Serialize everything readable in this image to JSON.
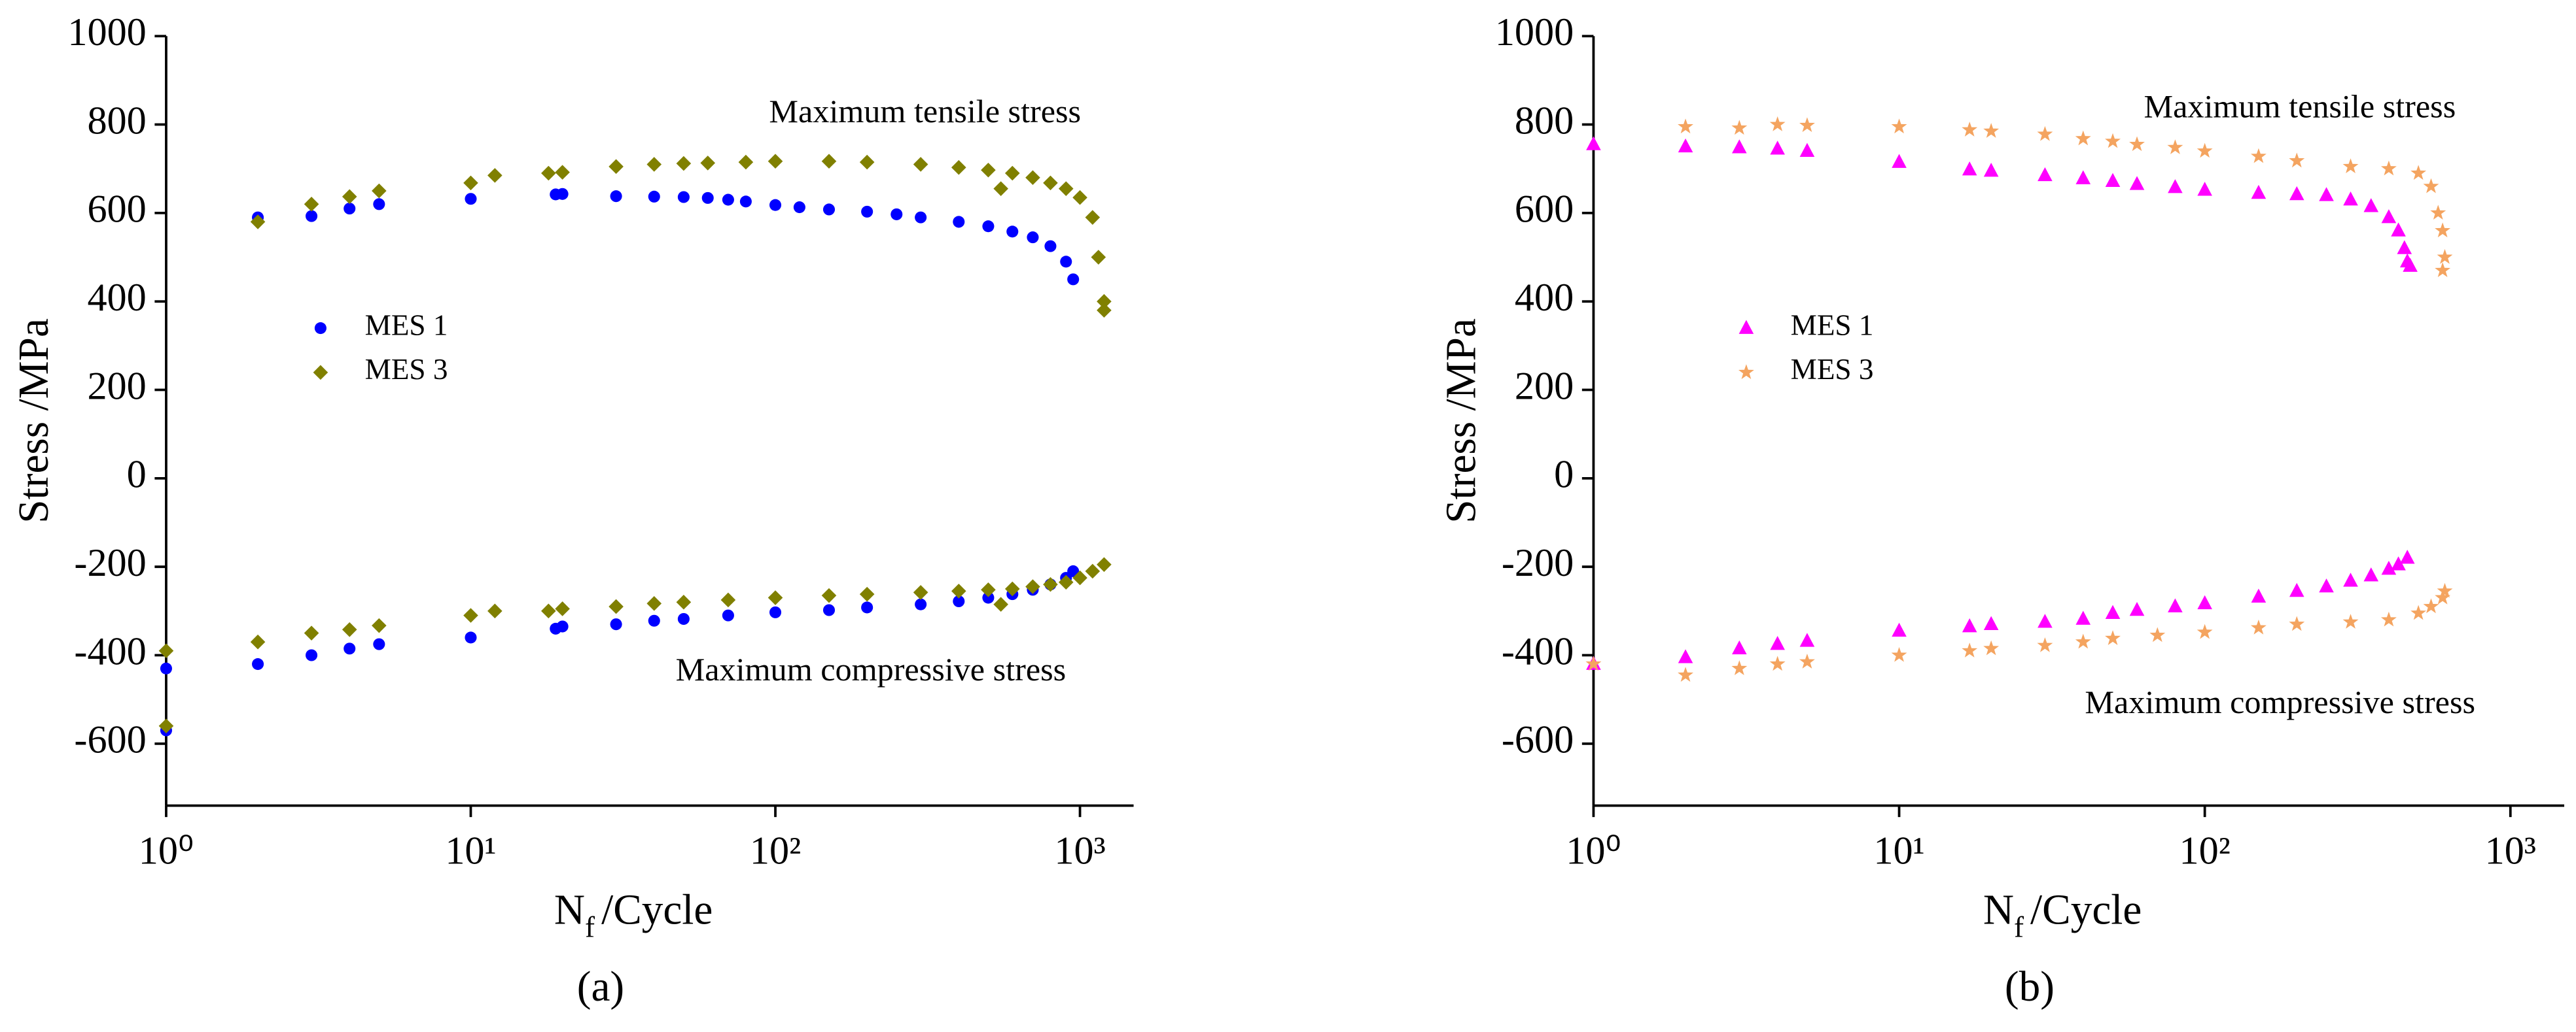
{
  "chart_data": [
    {
      "type": "scatter",
      "caption": "(a)",
      "ylabel": "Stress /MPa",
      "xlabel": [
        "N",
        "f",
        "/Cycle"
      ],
      "xscale": "log",
      "xlim": [
        1,
        1500
      ],
      "ylim": [
        -740,
        1000
      ],
      "xticks": [
        {
          "value": 1,
          "label": "10⁰"
        },
        {
          "value": 10,
          "label": "10¹"
        },
        {
          "value": 100,
          "label": "10²"
        },
        {
          "value": 1000,
          "label": "10³"
        }
      ],
      "yticks": [
        1000,
        800,
        600,
        400,
        200,
        0,
        -200,
        -400,
        -600
      ],
      "annotations": [
        "Maximum tensile stress",
        "Maximum compressive stress"
      ],
      "series": [
        {
          "name": "MES 1",
          "color": "#0000ff",
          "marker": "circle",
          "x": [
            2,
            3,
            4,
            5,
            10,
            19,
            20,
            30,
            40,
            50,
            60,
            70,
            80,
            100,
            120,
            150,
            200,
            250,
            300,
            400,
            500,
            600,
            700,
            800,
            900,
            950,
            1,
            1,
            2,
            3,
            4,
            5,
            10,
            19,
            20,
            30,
            40,
            50,
            70,
            100,
            150,
            200,
            300,
            400,
            500,
            600,
            700,
            800,
            900,
            950
          ],
          "y": [
            590,
            593,
            610,
            620,
            632,
            642,
            643,
            638,
            637,
            636,
            634,
            630,
            626,
            618,
            613,
            608,
            603,
            597,
            590,
            580,
            570,
            558,
            545,
            525,
            490,
            450,
            -430,
            -570,
            -420,
            -400,
            -385,
            -375,
            -360,
            -340,
            -335,
            -330,
            -322,
            -318,
            -310,
            -303,
            -298,
            -292,
            -285,
            -278,
            -270,
            -262,
            -252,
            -240,
            -225,
            -210
          ]
        },
        {
          "name": "MES 3",
          "color": "#808000",
          "marker": "diamond",
          "x": [
            2,
            3,
            4,
            5,
            10,
            12,
            18,
            20,
            30,
            40,
            50,
            60,
            80,
            100,
            150,
            200,
            300,
            400,
            500,
            550,
            600,
            700,
            800,
            900,
            1000,
            1100,
            1150,
            1200,
            1200,
            1,
            1,
            2,
            3,
            4,
            5,
            10,
            12,
            18,
            20,
            30,
            40,
            50,
            70,
            100,
            150,
            200,
            300,
            400,
            500,
            550,
            600,
            700,
            800,
            900,
            1000,
            1100,
            1200
          ],
          "y": [
            580,
            620,
            637,
            650,
            668,
            685,
            690,
            692,
            705,
            710,
            712,
            713,
            715,
            717,
            717,
            715,
            710,
            703,
            697,
            655,
            690,
            680,
            668,
            655,
            635,
            590,
            500,
            400,
            380,
            -390,
            -560,
            -370,
            -350,
            -342,
            -333,
            -310,
            -300,
            -300,
            -295,
            -290,
            -283,
            -280,
            -275,
            -270,
            -265,
            -262,
            -258,
            -255,
            -252,
            -285,
            -250,
            -245,
            -240,
            -235,
            -225,
            -210,
            -195
          ]
        }
      ]
    },
    {
      "type": "scatter",
      "caption": "(b)",
      "ylabel": "Stress /MPa",
      "xlabel": [
        "N",
        "f",
        "/Cycle"
      ],
      "xscale": "log",
      "xlim": [
        1,
        1500
      ],
      "ylim": [
        -740,
        1000
      ],
      "xticks": [
        {
          "value": 1,
          "label": "10⁰"
        },
        {
          "value": 10,
          "label": "10¹"
        },
        {
          "value": 100,
          "label": "10²"
        },
        {
          "value": 1000,
          "label": "10³"
        }
      ],
      "yticks": [
        1000,
        800,
        600,
        400,
        200,
        0,
        -200,
        -400,
        -600
      ],
      "annotations": [
        "Maximum tensile stress",
        "Maximum compressive stress"
      ],
      "series": [
        {
          "name": "MES 1",
          "color": "#ff00ff",
          "marker": "triangle",
          "x": [
            1,
            2,
            3,
            4,
            5,
            10,
            17,
            20,
            30,
            40,
            50,
            60,
            80,
            100,
            150,
            200,
            250,
            300,
            350,
            400,
            430,
            450,
            460,
            470,
            1,
            2,
            3,
            4,
            5,
            10,
            17,
            20,
            30,
            40,
            50,
            60,
            80,
            100,
            150,
            200,
            250,
            300,
            350,
            400,
            430,
            460
          ],
          "y": [
            755,
            750,
            748,
            745,
            740,
            715,
            698,
            695,
            685,
            678,
            672,
            665,
            658,
            652,
            645,
            642,
            640,
            630,
            615,
            590,
            560,
            520,
            490,
            480,
            -420,
            -405,
            -385,
            -375,
            -368,
            -345,
            -335,
            -330,
            -325,
            -318,
            -305,
            -298,
            -290,
            -283,
            -268,
            -255,
            -245,
            -232,
            -220,
            -205,
            -195,
            -180
          ]
        },
        {
          "name": "MES 3",
          "color": "#f4a460",
          "marker": "star",
          "x": [
            2,
            3,
            4,
            5,
            10,
            17,
            20,
            30,
            40,
            50,
            60,
            80,
            100,
            150,
            200,
            300,
            400,
            500,
            550,
            580,
            600,
            610,
            600,
            1,
            2,
            3,
            4,
            5,
            10,
            17,
            20,
            30,
            40,
            50,
            70,
            100,
            150,
            200,
            300,
            400,
            500,
            550,
            600,
            610
          ],
          "y": [
            795,
            792,
            800,
            798,
            795,
            788,
            785,
            778,
            768,
            762,
            755,
            748,
            740,
            728,
            718,
            705,
            700,
            690,
            660,
            600,
            560,
            500,
            470,
            -420,
            -445,
            -430,
            -420,
            -415,
            -400,
            -390,
            -385,
            -378,
            -370,
            -362,
            -355,
            -348,
            -338,
            -330,
            -325,
            -320,
            -305,
            -290,
            -270,
            -255
          ]
        }
      ]
    }
  ]
}
